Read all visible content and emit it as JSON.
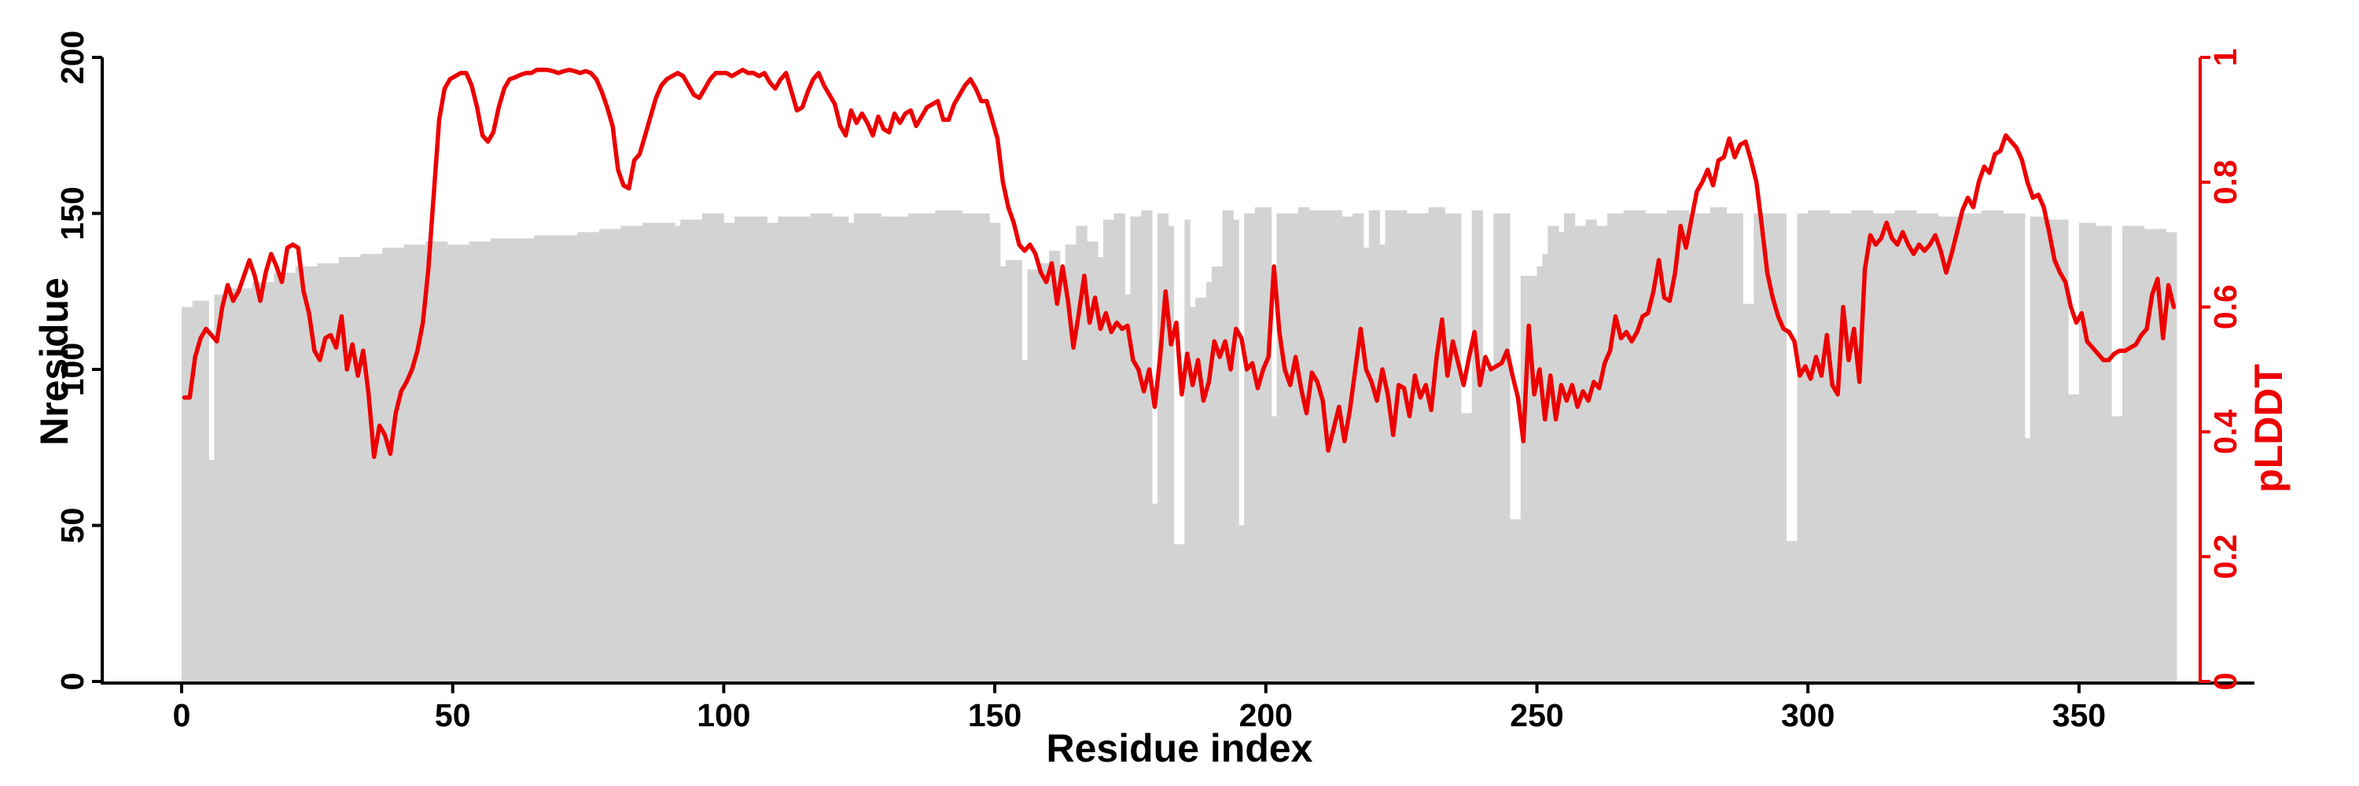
{
  "figure": {
    "description": "Per-residue plot: gray bars show Nresidue (left axis), red curve shows pLDDT (right axis) versus residue index"
  },
  "chart_data": {
    "type": "bar+line-dual-axis",
    "title": "",
    "x_axis": {
      "title": "Residue index",
      "range": [
        0,
        368
      ],
      "ticks": [
        {
          "v": 0,
          "label": "0"
        },
        {
          "v": 50,
          "label": "50"
        },
        {
          "v": 100,
          "label": "100"
        },
        {
          "v": 150,
          "label": "150"
        },
        {
          "v": 200,
          "label": "200"
        },
        {
          "v": 250,
          "label": "250"
        },
        {
          "v": 300,
          "label": "300"
        },
        {
          "v": 350,
          "label": "350"
        }
      ]
    },
    "y_left": {
      "title": "Nresidue",
      "range": [
        0,
        200
      ],
      "ticks": [
        {
          "v": 0,
          "label": "0"
        },
        {
          "v": 50,
          "label": "50"
        },
        {
          "v": 100,
          "label": "100"
        },
        {
          "v": 150,
          "label": "150"
        },
        {
          "v": 200,
          "label": "200"
        }
      ]
    },
    "y_right": {
      "title": "pLDDT",
      "range": [
        0,
        1
      ],
      "ticks": [
        {
          "v": 0,
          "label": "0"
        },
        {
          "v": 0.2,
          "label": "0.2"
        },
        {
          "v": 0.4,
          "label": "0.4"
        },
        {
          "v": 0.6,
          "label": "0.6"
        },
        {
          "v": 0.8,
          "label": "0.8"
        },
        {
          "v": 1,
          "label": "1"
        }
      ]
    },
    "colors": {
      "bar": "#d3d3d3",
      "line": "#ec0000",
      "axis": "#000000",
      "background": "#ffffff"
    },
    "legend": "none",
    "grid": "off",
    "bars_series_name": "Nresidue",
    "bars_runs": [
      [
        0,
        1,
        120
      ],
      [
        2,
        4,
        122
      ],
      [
        5,
        5,
        71
      ],
      [
        6,
        8,
        124
      ],
      [
        9,
        12,
        126
      ],
      [
        13,
        16,
        128
      ],
      [
        17,
        20,
        131
      ],
      [
        21,
        24,
        133
      ],
      [
        25,
        28,
        134
      ],
      [
        29,
        32,
        136
      ],
      [
        33,
        36,
        137
      ],
      [
        37,
        40,
        139
      ],
      [
        41,
        44,
        140
      ],
      [
        45,
        48,
        141
      ],
      [
        49,
        52,
        140
      ],
      [
        53,
        56,
        141
      ],
      [
        57,
        64,
        142
      ],
      [
        65,
        72,
        143
      ],
      [
        73,
        76,
        144
      ],
      [
        77,
        80,
        145
      ],
      [
        81,
        84,
        146
      ],
      [
        85,
        90,
        147
      ],
      [
        91,
        91,
        146
      ],
      [
        92,
        95,
        148
      ],
      [
        96,
        99,
        150
      ],
      [
        100,
        101,
        147
      ],
      [
        102,
        107,
        149
      ],
      [
        108,
        109,
        147
      ],
      [
        110,
        115,
        149
      ],
      [
        116,
        119,
        150
      ],
      [
        120,
        122,
        149
      ],
      [
        123,
        123,
        147
      ],
      [
        124,
        128,
        150
      ],
      [
        129,
        133,
        149
      ],
      [
        134,
        138,
        150
      ],
      [
        139,
        143,
        151
      ],
      [
        144,
        148,
        150
      ],
      [
        149,
        150,
        147
      ],
      [
        151,
        151,
        133
      ],
      [
        152,
        154,
        135
      ],
      [
        155,
        155,
        103
      ],
      [
        156,
        157,
        132
      ],
      [
        158,
        159,
        134
      ],
      [
        160,
        161,
        138
      ],
      [
        162,
        162,
        128
      ],
      [
        163,
        164,
        140
      ],
      [
        165,
        166,
        146
      ],
      [
        167,
        168,
        141
      ],
      [
        169,
        169,
        136
      ],
      [
        170,
        171,
        148
      ],
      [
        172,
        173,
        150
      ],
      [
        174,
        174,
        124
      ],
      [
        175,
        176,
        149
      ],
      [
        177,
        178,
        151
      ],
      [
        179,
        179,
        57
      ],
      [
        180,
        181,
        150
      ],
      [
        182,
        182,
        146
      ],
      [
        183,
        184,
        44
      ],
      [
        185,
        185,
        148
      ],
      [
        186,
        186,
        120
      ],
      [
        187,
        188,
        123
      ],
      [
        189,
        189,
        128
      ],
      [
        190,
        191,
        133
      ],
      [
        192,
        193,
        151
      ],
      [
        194,
        194,
        148
      ],
      [
        195,
        195,
        50
      ],
      [
        196,
        197,
        150
      ],
      [
        198,
        200,
        152
      ],
      [
        201,
        201,
        85
      ],
      [
        202,
        205,
        150
      ],
      [
        206,
        207,
        152
      ],
      [
        208,
        213,
        151
      ],
      [
        214,
        215,
        149
      ],
      [
        216,
        217,
        150
      ],
      [
        218,
        218,
        139
      ],
      [
        219,
        220,
        151
      ],
      [
        221,
        221,
        140
      ],
      [
        222,
        225,
        151
      ],
      [
        226,
        229,
        150
      ],
      [
        230,
        232,
        152
      ],
      [
        233,
        235,
        150
      ],
      [
        236,
        237,
        86
      ],
      [
        238,
        239,
        151
      ],
      [
        240,
        241,
        100
      ],
      [
        242,
        244,
        150
      ],
      [
        245,
        246,
        52
      ],
      [
        247,
        249,
        130
      ],
      [
        250,
        250,
        133
      ],
      [
        251,
        251,
        137
      ],
      [
        252,
        253,
        146
      ],
      [
        254,
        254,
        144
      ],
      [
        255,
        256,
        150
      ],
      [
        257,
        258,
        146
      ],
      [
        259,
        260,
        148
      ],
      [
        261,
        262,
        146
      ],
      [
        263,
        265,
        150
      ],
      [
        266,
        269,
        151
      ],
      [
        270,
        273,
        150
      ],
      [
        274,
        277,
        151
      ],
      [
        278,
        281,
        150
      ],
      [
        282,
        284,
        152
      ],
      [
        285,
        287,
        150
      ],
      [
        288,
        289,
        121
      ],
      [
        290,
        295,
        150
      ],
      [
        296,
        297,
        45
      ],
      [
        298,
        299,
        150
      ],
      [
        300,
        303,
        151
      ],
      [
        304,
        307,
        150
      ],
      [
        308,
        311,
        151
      ],
      [
        312,
        315,
        150
      ],
      [
        316,
        319,
        151
      ],
      [
        320,
        323,
        150
      ],
      [
        324,
        327,
        149
      ],
      [
        328,
        331,
        150
      ],
      [
        332,
        335,
        151
      ],
      [
        336,
        339,
        150
      ],
      [
        340,
        340,
        78
      ],
      [
        341,
        343,
        149
      ],
      [
        344,
        347,
        148
      ],
      [
        348,
        349,
        92
      ],
      [
        350,
        352,
        147
      ],
      [
        353,
        355,
        146
      ],
      [
        356,
        357,
        85
      ],
      [
        358,
        361,
        146
      ],
      [
        362,
        365,
        145
      ],
      [
        366,
        367,
        144
      ]
    ],
    "line_series_name": "pLDDT",
    "plddt_values": [
      0.455,
      0.455,
      0.52,
      0.55,
      0.565,
      0.555,
      0.545,
      0.6,
      0.635,
      0.61,
      0.625,
      0.65,
      0.675,
      0.65,
      0.61,
      0.655,
      0.685,
      0.665,
      0.64,
      0.695,
      0.7,
      0.695,
      0.625,
      0.59,
      0.53,
      0.515,
      0.55,
      0.555,
      0.535,
      0.585,
      0.5,
      0.54,
      0.49,
      0.53,
      0.46,
      0.36,
      0.41,
      0.395,
      0.365,
      0.43,
      0.465,
      0.48,
      0.5,
      0.53,
      0.575,
      0.66,
      0.78,
      0.9,
      0.95,
      0.965,
      0.97,
      0.975,
      0.975,
      0.955,
      0.92,
      0.875,
      0.865,
      0.88,
      0.92,
      0.95,
      0.965,
      0.968,
      0.972,
      0.975,
      0.975,
      0.98,
      0.98,
      0.98,
      0.978,
      0.975,
      0.978,
      0.98,
      0.978,
      0.975,
      0.978,
      0.975,
      0.965,
      0.945,
      0.92,
      0.89,
      0.82,
      0.795,
      0.79,
      0.835,
      0.845,
      0.875,
      0.905,
      0.935,
      0.955,
      0.965,
      0.97,
      0.975,
      0.97,
      0.955,
      0.94,
      0.935,
      0.95,
      0.965,
      0.975,
      0.975,
      0.975,
      0.97,
      0.975,
      0.98,
      0.975,
      0.975,
      0.97,
      0.975,
      0.96,
      0.95,
      0.965,
      0.975,
      0.945,
      0.915,
      0.92,
      0.945,
      0.965,
      0.975,
      0.955,
      0.94,
      0.925,
      0.89,
      0.875,
      0.915,
      0.895,
      0.91,
      0.895,
      0.875,
      0.905,
      0.885,
      0.88,
      0.91,
      0.895,
      0.91,
      0.915,
      0.89,
      0.905,
      0.92,
      0.925,
      0.93,
      0.9,
      0.9,
      0.925,
      0.94,
      0.955,
      0.965,
      0.95,
      0.93,
      0.93,
      0.9,
      0.87,
      0.8,
      0.76,
      0.735,
      0.7,
      0.69,
      0.7,
      0.685,
      0.655,
      0.64,
      0.67,
      0.605,
      0.665,
      0.61,
      0.535,
      0.59,
      0.65,
      0.575,
      0.615,
      0.565,
      0.59,
      0.56,
      0.575,
      0.565,
      0.57,
      0.515,
      0.5,
      0.465,
      0.5,
      0.44,
      0.52,
      0.625,
      0.54,
      0.575,
      0.46,
      0.525,
      0.475,
      0.515,
      0.45,
      0.48,
      0.545,
      0.52,
      0.545,
      0.5,
      0.565,
      0.55,
      0.5,
      0.51,
      0.47,
      0.5,
      0.52,
      0.665,
      0.56,
      0.5,
      0.475,
      0.52,
      0.47,
      0.43,
      0.495,
      0.48,
      0.45,
      0.37,
      0.405,
      0.44,
      0.385,
      0.435,
      0.5,
      0.565,
      0.5,
      0.48,
      0.45,
      0.5,
      0.46,
      0.395,
      0.475,
      0.47,
      0.425,
      0.49,
      0.455,
      0.475,
      0.435,
      0.52,
      0.58,
      0.49,
      0.545,
      0.51,
      0.475,
      0.52,
      0.56,
      0.475,
      0.52,
      0.5,
      0.505,
      0.51,
      0.53,
      0.49,
      0.455,
      0.385,
      0.57,
      0.46,
      0.5,
      0.42,
      0.49,
      0.42,
      0.475,
      0.45,
      0.475,
      0.44,
      0.465,
      0.45,
      0.48,
      0.47,
      0.51,
      0.53,
      0.585,
      0.55,
      0.56,
      0.545,
      0.56,
      0.585,
      0.59,
      0.625,
      0.675,
      0.615,
      0.61,
      0.655,
      0.73,
      0.695,
      0.74,
      0.785,
      0.8,
      0.82,
      0.795,
      0.835,
      0.84,
      0.87,
      0.84,
      0.86,
      0.865,
      0.835,
      0.8,
      0.73,
      0.655,
      0.615,
      0.585,
      0.565,
      0.56,
      0.545,
      0.49,
      0.505,
      0.485,
      0.52,
      0.49,
      0.555,
      0.475,
      0.46,
      0.6,
      0.515,
      0.565,
      0.48,
      0.66,
      0.715,
      0.7,
      0.71,
      0.735,
      0.71,
      0.7,
      0.72,
      0.7,
      0.685,
      0.7,
      0.69,
      0.7,
      0.715,
      0.69,
      0.655,
      0.685,
      0.72,
      0.755,
      0.775,
      0.76,
      0.8,
      0.825,
      0.815,
      0.845,
      0.85,
      0.875,
      0.865,
      0.855,
      0.835,
      0.8,
      0.775,
      0.78,
      0.76,
      0.72,
      0.675,
      0.655,
      0.64,
      0.6,
      0.575,
      0.59,
      0.545,
      0.535,
      0.525,
      0.515,
      0.515,
      0.525,
      0.53,
      0.53,
      0.535,
      0.54,
      0.555,
      0.565,
      0.62,
      0.645,
      0.55,
      0.635,
      0.6
    ]
  }
}
